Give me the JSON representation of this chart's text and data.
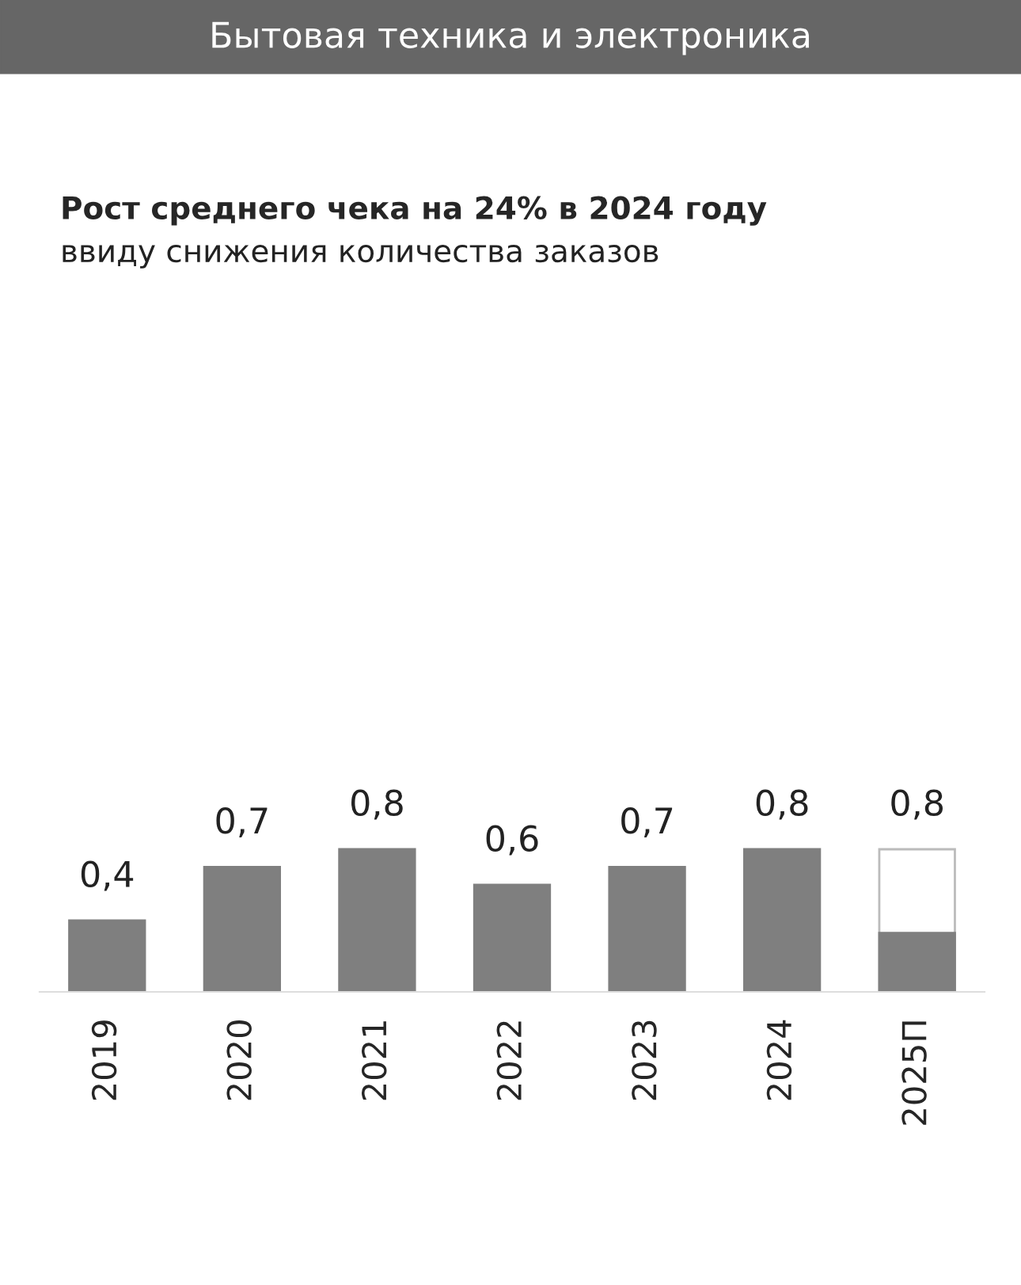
{
  "chart_data": {
    "type": "bar",
    "title": "Бытовая техника и электроника",
    "subtitle": "Рост среднего чека на 24% в 2024 году",
    "annotations": [
      "ввиду снижения количества заказов"
    ],
    "categories": [
      "2019",
      "2020",
      "2021",
      "2022",
      "2023",
      "2024",
      "2025П"
    ],
    "series": [
      {
        "colors": [
          "#7f7f7f",
          "#7f7f7f",
          "#7f7f7f",
          "#7f7f7f",
          "#7f7f7f",
          "#7f7f7f",
          "#ffffff"
        ],
        "values": [
          0.4,
          0.7,
          0.8,
          0.6,
          0.7,
          0.8,
          0.8
        ],
        "value_labels": [
          "0,4",
          "0,7",
          "0,8",
          "0,6",
          "0,7",
          "0,8",
          "0,8"
        ]
      },
      {
        "color": "#7f7f7f",
        "values": [
          null,
          null,
          null,
          null,
          null,
          null,
          0.33
        ]
      }
    ],
    "grid": false,
    "legend": false
  }
}
